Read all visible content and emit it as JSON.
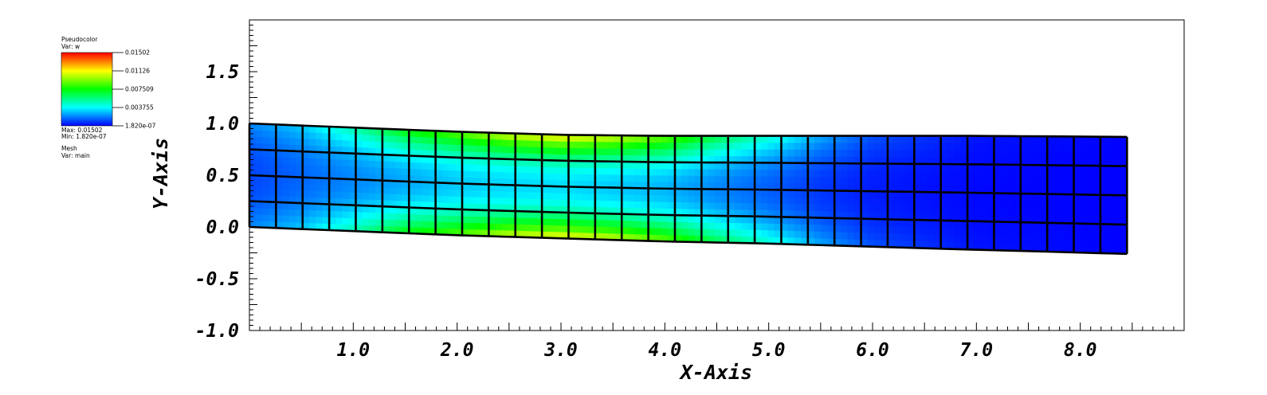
{
  "chart_data": {
    "type": "heatmap",
    "xlabel": "X-Axis",
    "ylabel": "Y-Axis",
    "xlim": [
      0.0,
      9.0
    ],
    "ylim": [
      -1.0,
      2.0
    ],
    "x_tick_labels": [
      "1.0",
      "2.0",
      "3.0",
      "4.0",
      "5.0",
      "6.0",
      "7.0",
      "8.0"
    ],
    "y_tick_labels": [
      "-1.0",
      "-0.5",
      "0.0",
      "0.5",
      "1.0",
      "1.5"
    ],
    "legend": {
      "plot_name": "Pseudocolor",
      "var_label": "Var: w",
      "tick_values": [
        "0.01502",
        "0.01126",
        "0.007509",
        "0.003755",
        "1.820e-07"
      ],
      "max_label": "Max: 0.01502",
      "min_label": "Min: 1.820e-07",
      "mesh_name": "Mesh",
      "mesh_var": "Var: main"
    },
    "colormap": [
      "#0000ff",
      "#00ffff",
      "#00ff00",
      "#ffff00",
      "#ff0000"
    ],
    "value_range": [
      1.82e-07,
      0.01502
    ],
    "mesh": {
      "columns": 33,
      "rows": 4,
      "x_extent": [
        0.0,
        8.45
      ],
      "bottom_edge": [
        [
          0.0,
          0.0
        ],
        [
          1.0,
          -0.04
        ],
        [
          2.0,
          -0.08
        ],
        [
          3.0,
          -0.11
        ],
        [
          4.0,
          -0.14
        ],
        [
          5.0,
          -0.16
        ],
        [
          6.0,
          -0.19
        ],
        [
          7.0,
          -0.22
        ],
        [
          8.45,
          -0.26
        ]
      ],
      "top_edge": [
        [
          0.0,
          1.0
        ],
        [
          1.0,
          0.96
        ],
        [
          2.0,
          0.92
        ],
        [
          3.0,
          0.89
        ],
        [
          4.0,
          0.88
        ],
        [
          5.0,
          0.88
        ],
        [
          6.0,
          0.88
        ],
        [
          7.0,
          0.88
        ],
        [
          8.45,
          0.87
        ]
      ],
      "field_profile": {
        "x": [
          0.0,
          0.5,
          1.0,
          1.5,
          2.0,
          2.5,
          3.0,
          3.5,
          4.0,
          4.5,
          5.0,
          5.5,
          6.0,
          7.0,
          8.45
        ],
        "surface_w": [
          0.002,
          0.003,
          0.005,
          0.0075,
          0.009,
          0.0108,
          0.0115,
          0.0108,
          0.0092,
          0.0065,
          0.0045,
          0.0025,
          0.0012,
          0.0003,
          2e-05
        ],
        "mid_w": [
          0.001,
          0.0015,
          0.002,
          0.0025,
          0.003,
          0.0032,
          0.0033,
          0.003,
          0.0027,
          0.002,
          0.0014,
          0.0008,
          0.0004,
          0.0001,
          0.0
        ]
      }
    }
  }
}
